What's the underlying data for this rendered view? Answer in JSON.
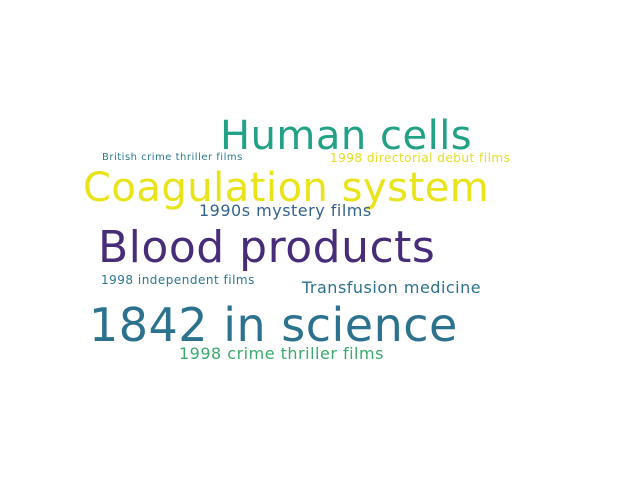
{
  "words": [
    {
      "text": "Human cells",
      "color": "#21a185"
    },
    {
      "text": "Coagulation system",
      "color": "#e8e419"
    },
    {
      "text": "1990s mystery films",
      "color": "#33638d"
    },
    {
      "text": "Blood products",
      "color": "#472c7a"
    },
    {
      "text": "Transfusion medicine",
      "color": "#2c728e"
    },
    {
      "text": "1842 in science",
      "color": "#2c728e"
    },
    {
      "text": "1998 crime thriller films",
      "color": "#3ba96d"
    },
    {
      "text": "British crime thriller films",
      "color": "#2b7b8e"
    },
    {
      "text": "1998 directorial debut films",
      "color": "#e3dd1f"
    },
    {
      "text": "1998 independent films",
      "color": "#2a788e"
    }
  ]
}
